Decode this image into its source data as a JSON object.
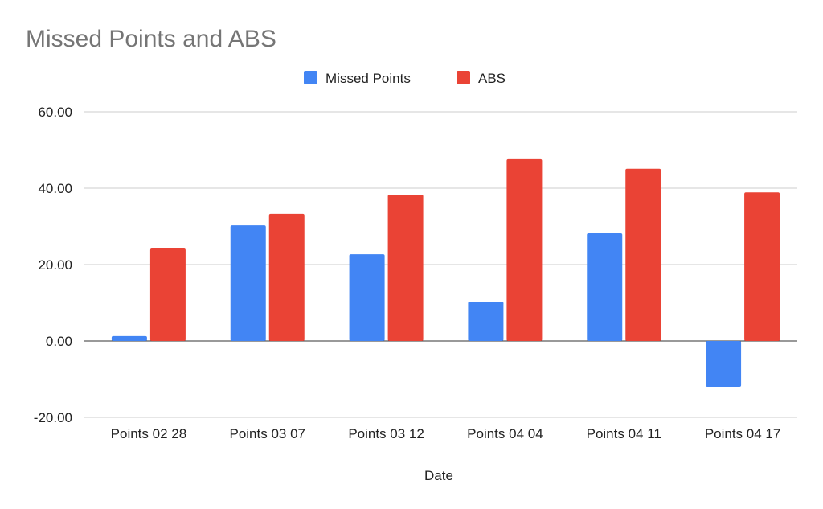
{
  "chart_data": {
    "type": "bar",
    "title": "Missed Points and ABS",
    "xlabel": "Date",
    "ylabel": "",
    "categories": [
      "Points 02 28",
      "Points 03 07",
      "Points 03 12",
      "Points 04 04",
      "Points 04 11",
      "Points 04 17"
    ],
    "series": [
      {
        "name": "Missed Points",
        "color": "#4285f4",
        "values": [
          1.3,
          30.3,
          22.7,
          10.3,
          28.2,
          -12.0
        ]
      },
      {
        "name": "ABS",
        "color": "#ea4335",
        "values": [
          24.2,
          33.3,
          38.3,
          47.6,
          45.1,
          38.9
        ]
      }
    ],
    "ylim": [
      -20,
      60
    ],
    "yticks": [
      "-20.00",
      "0.00",
      "20.00",
      "40.00",
      "60.00"
    ],
    "ytick_values": [
      -20,
      0,
      20,
      40,
      60
    ],
    "grid": true,
    "legend_position": "top-center"
  }
}
